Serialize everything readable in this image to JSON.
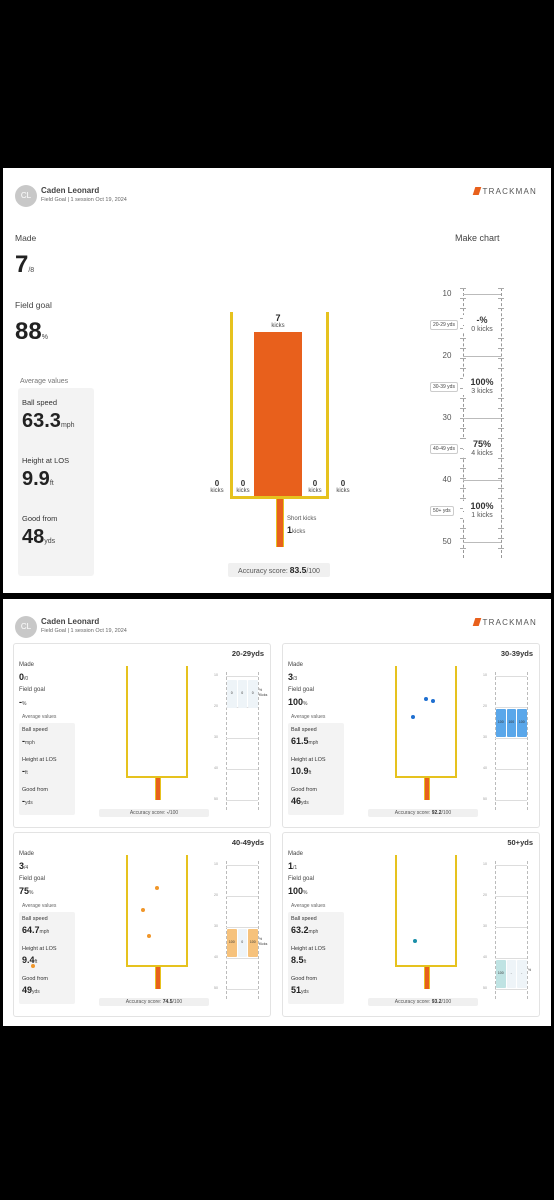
{
  "header": {
    "avatar_initials": "CL",
    "name": "Caden Leonard",
    "subtitle": "Field Goal  |  1 session  Oct 19, 2024",
    "brand": "TRACKMAN",
    "brand_color": "#e8601c"
  },
  "summary": {
    "made_label": "Made",
    "made_value": "7",
    "made_total": "/8",
    "fg_label": "Field goal",
    "fg_value": "88",
    "fg_unit": "%",
    "avg_title": "Average values",
    "ball_speed_label": "Ball speed",
    "ball_speed_value": "63.3",
    "ball_speed_unit": "mph",
    "height_label": "Height at LOS",
    "height_value": "9.9",
    "height_unit": "ft",
    "good_from_label": "Good from",
    "good_from_value": "48",
    "good_from_unit": "yds",
    "goal": {
      "center_count": "7",
      "kicks_word": "kicks",
      "outer_left_count": "0",
      "inner_left_count": "0",
      "inner_right_count": "0",
      "outer_right_count": "0",
      "short_label": "Short kicks",
      "short_count": "1"
    },
    "accuracy_label": "Accuracy score:",
    "accuracy_value": "83.5",
    "accuracy_total": "/100",
    "bar_color": "#e8601c",
    "post_color": "#e6c21e",
    "make_chart": {
      "title": "Make chart",
      "ticks": [
        "10",
        "20",
        "30",
        "40",
        "50"
      ],
      "zones": [
        {
          "label": "20-29 yds",
          "pct": "-%",
          "kicks": "0 kicks"
        },
        {
          "label": "30-39 yds",
          "pct": "100%",
          "kicks": "3 kicks"
        },
        {
          "label": "40-49 yds",
          "pct": "75%",
          "kicks": "4 kicks"
        },
        {
          "label": "50+ yds",
          "pct": "100%",
          "kicks": "1 kicks"
        }
      ]
    }
  },
  "panels": [
    {
      "range": "20-29yds",
      "made": "0",
      "made_total": "/0",
      "fg": "-",
      "fg_unit": "%",
      "avg_title": "Average values",
      "ball_speed": "-",
      "ball_unit": "mph",
      "height": "-",
      "height_unit": "ft",
      "good_from": "-",
      "good_unit": "yds",
      "accuracy": "-",
      "accuracy_total": "/100",
      "bar_vals": [
        "0",
        "0",
        "0"
      ],
      "pct_word": "%",
      "kicks_word": "Kicks",
      "zone_color": "#d7e9f7",
      "kick_color": "#2a7fd4",
      "kicks": []
    },
    {
      "range": "30-39yds",
      "made": "3",
      "made_total": "/3",
      "fg": "100",
      "fg_unit": "%",
      "avg_title": "Average values",
      "ball_speed": "61.5",
      "ball_unit": "mph",
      "height": "10.9",
      "height_unit": "ft",
      "good_from": "46",
      "good_unit": "yds",
      "accuracy": "92.2",
      "accuracy_total": "/100",
      "bar_vals": [
        "100",
        "100",
        "100"
      ],
      "pct_word": "",
      "kicks_word": "",
      "zone_color": "#5aa7ea",
      "kick_color": "#1f6fd0",
      "kicks": [
        [
          0.52,
          0.3
        ],
        [
          0.64,
          0.32
        ],
        [
          0.3,
          0.46
        ]
      ]
    },
    {
      "range": "40-49yds",
      "made": "3",
      "made_total": "/4",
      "fg": "75",
      "fg_unit": "%",
      "avg_title": "Average values",
      "ball_speed": "64.7",
      "ball_unit": "mph",
      "height": "9.4",
      "height_unit": "ft",
      "good_from": "49",
      "good_unit": "yds",
      "accuracy": "74.5",
      "accuracy_total": "/100",
      "bar_vals": [
        "100",
        "0",
        "100"
      ],
      "pct_word": "%",
      "kicks_word": "Kicks",
      "zone_color": "#f6c27c",
      "kick_color": "#f0962a",
      "kicks": [
        [
          0.52,
          0.3
        ],
        [
          0.28,
          0.5
        ],
        [
          0.38,
          0.74
        ],
        [
          -1.55,
          1.01
        ]
      ]
    },
    {
      "range": "50+yds",
      "made": "1",
      "made_total": "/1",
      "fg": "100",
      "fg_unit": "%",
      "avg_title": "Average values",
      "ball_speed": "63.2",
      "ball_unit": "mph",
      "height": "8.5",
      "height_unit": "ft",
      "good_from": "51",
      "good_unit": "yds",
      "accuracy": "93.2",
      "accuracy_total": "/100",
      "bar_vals": [
        "100",
        "-",
        "-"
      ],
      "pct_word": "%",
      "kicks_word": "",
      "zone_color": "#bfe3e3",
      "kick_color": "#1a8fa8",
      "kicks": [
        [
          0.34,
          0.78
        ]
      ]
    }
  ],
  "panel_labels": {
    "made": "Made",
    "fg": "Field goal",
    "ball": "Ball speed",
    "height": "Height at LOS",
    "good": "Good from",
    "accuracy": "Accuracy score:"
  }
}
